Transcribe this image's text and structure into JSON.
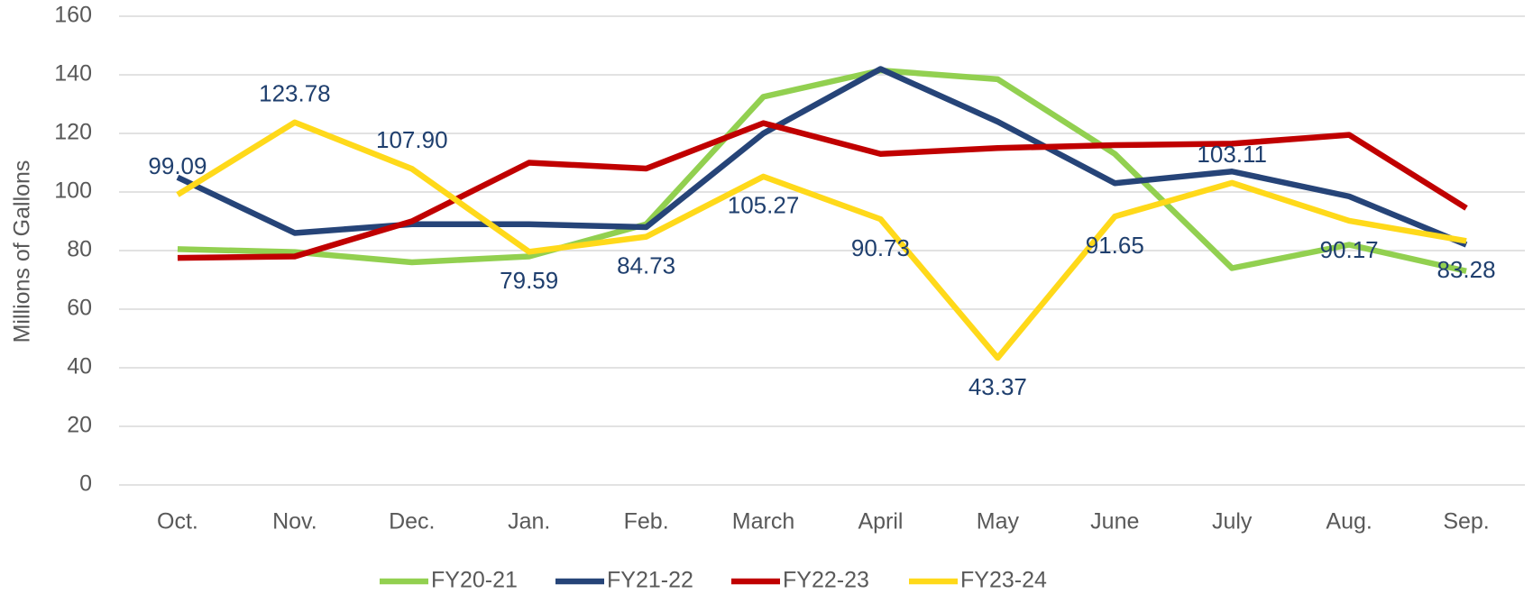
{
  "chart_data": {
    "type": "line",
    "y_label": "Millions of Gallons",
    "categories": [
      "Oct.",
      "Nov.",
      "Dec.",
      "Jan.",
      "Feb.",
      "March",
      "April",
      "May",
      "June",
      "July",
      "Aug.",
      "Sep."
    ],
    "ylim": [
      0,
      160
    ],
    "yticks": [
      0,
      20,
      40,
      60,
      80,
      100,
      120,
      140,
      160
    ],
    "grid": true,
    "series": [
      {
        "name": "FY20-21",
        "color": "#92d050",
        "values": [
          80.5,
          79.5,
          76,
          78,
          89,
          132.5,
          141.5,
          138.5,
          113,
          74,
          82,
          73
        ]
      },
      {
        "name": "FY21-22",
        "color": "#264478",
        "values": [
          105,
          86,
          89,
          89,
          88,
          120,
          142,
          124,
          103,
          107,
          98.5,
          82
        ]
      },
      {
        "name": "FY22-23",
        "color": "#c00000",
        "values": [
          77.5,
          78,
          90,
          110,
          108,
          123.5,
          113,
          115,
          116,
          116.5,
          119.5,
          94.5
        ]
      },
      {
        "name": "FY23-24",
        "color": "#ffd91a",
        "values": [
          99.09,
          123.78,
          107.9,
          79.59,
          84.73,
          105.27,
          90.73,
          43.37,
          91.65,
          103.11,
          90.17,
          83.28
        ],
        "value_labels": [
          "99.09",
          "123.78",
          "107.90",
          "79.59",
          "84.73",
          "105.27",
          "90.73",
          "43.37",
          "91.65",
          "103.11",
          "90.17",
          "83.28"
        ]
      }
    ]
  }
}
